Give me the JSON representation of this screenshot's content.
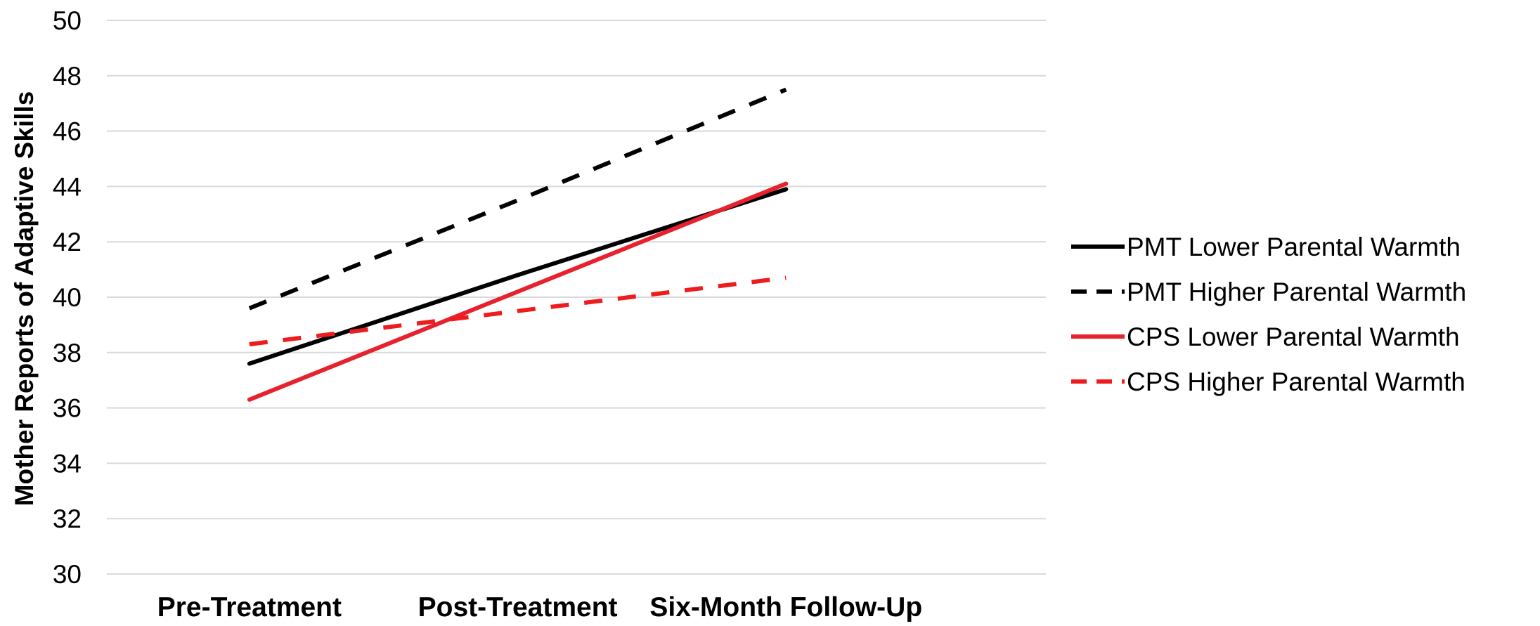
{
  "chart_data": {
    "type": "line",
    "title": "",
    "xlabel": "",
    "ylabel": "Mother Reports of Adaptive Skills",
    "categories": [
      "Pre-Treatment",
      "Post-Treatment",
      "Six-Month Follow-Up"
    ],
    "ylim": [
      30,
      50
    ],
    "yticks": [
      30,
      32,
      34,
      36,
      38,
      40,
      42,
      44,
      46,
      48,
      50
    ],
    "grid": true,
    "legend_position": "right",
    "series": [
      {
        "name": "PMT Lower Parental Warmth",
        "values": [
          37.6,
          40.8,
          43.9
        ],
        "color": "#000000",
        "dash": false
      },
      {
        "name": "PMT Higher Parental Warmth",
        "values": [
          39.6,
          43.5,
          47.5
        ],
        "color": "#000000",
        "dash": true
      },
      {
        "name": "CPS Lower Parental Warmth",
        "values": [
          36.3,
          40.2,
          44.1
        ],
        "color": "#e8212e",
        "dash": false
      },
      {
        "name": "CPS Higher Parental Warmth",
        "values": [
          38.3,
          39.5,
          40.7
        ],
        "color": "#ee1c1c",
        "dash": true
      }
    ]
  }
}
